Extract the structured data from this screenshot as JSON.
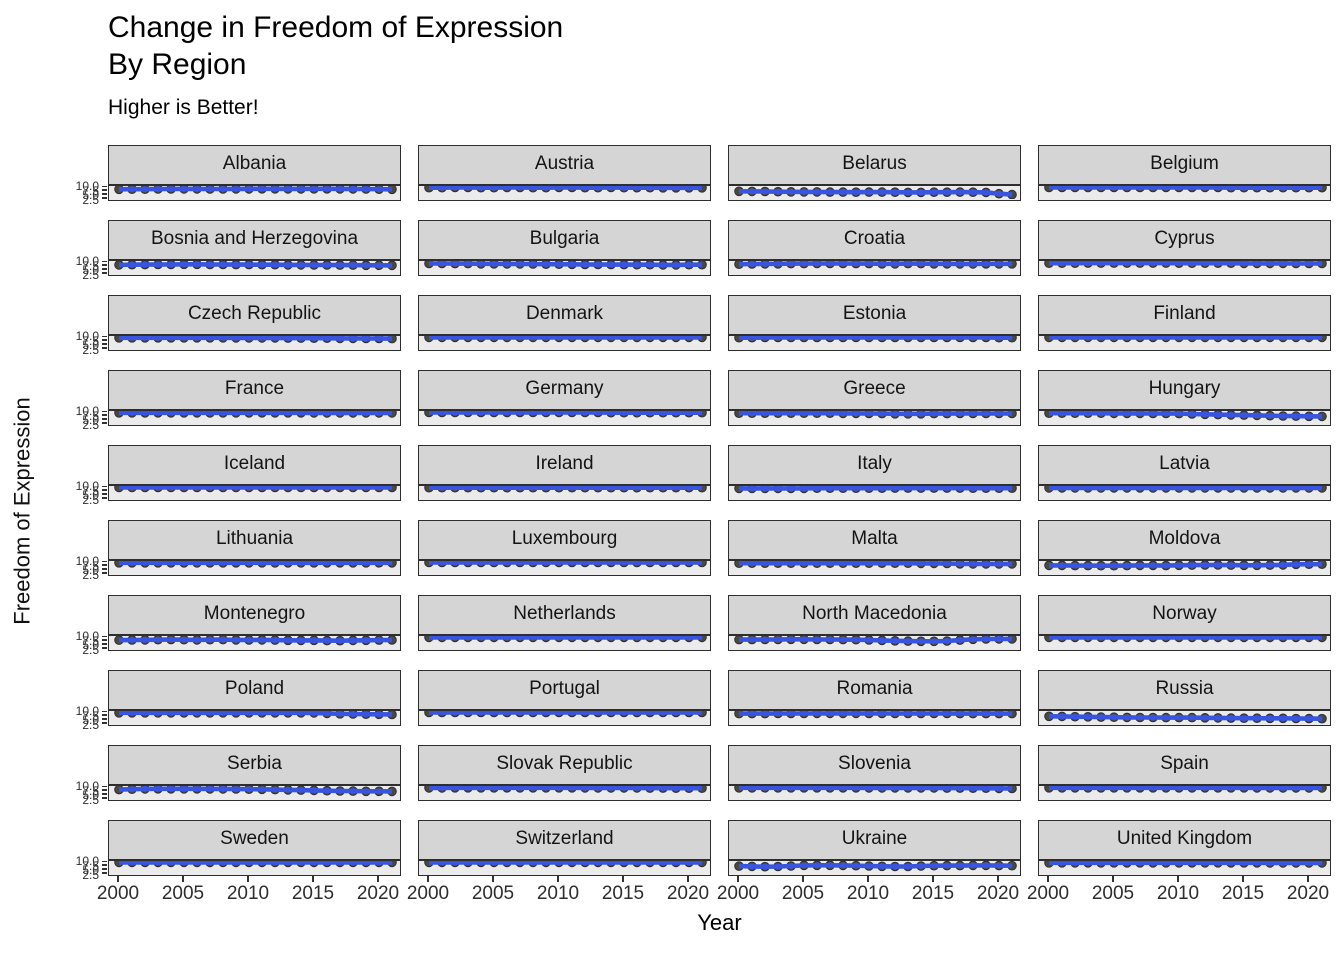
{
  "title": {
    "line1": "Change in Freedom of Expression",
    "line2": "By Region",
    "subtitle": "Higher is Better!"
  },
  "colors": {
    "accent_blue": "#3955e0",
    "point_outline": "#2f2f2f",
    "dark_point": "#484848",
    "strip_background": "#d5d5d5",
    "panel_background": "#ebebeb",
    "panel_border": "#2e2e2e"
  },
  "chart_data": {
    "type": "scatter",
    "title": "Change in Freedom of Expression By Region",
    "subtitle": "Higher is Better!",
    "xlabel": "Year",
    "ylabel": "Freedom of Expression",
    "x": [
      2000,
      2001,
      2002,
      2003,
      2004,
      2005,
      2006,
      2007,
      2008,
      2009,
      2010,
      2011,
      2012,
      2013,
      2014,
      2015,
      2016,
      2017,
      2018,
      2019,
      2020,
      2021
    ],
    "x_ticks": [
      "2000",
      "2005",
      "2010",
      "2015",
      "2020"
    ],
    "x_tick_values": [
      2000,
      2005,
      2010,
      2015,
      2020
    ],
    "y_ticks": [
      "10.0",
      "7.5",
      "5.0",
      "2.5"
    ],
    "y_tick_values": [
      10.0,
      7.5,
      5.0,
      2.5
    ],
    "ylim": [
      1.2,
      10.6
    ],
    "grid": false,
    "legend": "none",
    "layout": {
      "rows": 10,
      "cols": 4
    },
    "facets": [
      {
        "name": "Albania",
        "values": [
          8.2,
          8.3,
          8.3,
          8.4,
          8.4,
          8.5,
          8.5,
          8.4,
          8.4,
          8.5,
          8.5,
          8.6,
          8.6,
          8.5,
          8.5,
          8.6,
          8.6,
          8.5,
          8.5,
          8.4,
          8.3,
          8.2
        ]
      },
      {
        "name": "Austria",
        "values": [
          9.4,
          9.4,
          9.5,
          9.5,
          9.4,
          9.4,
          9.5,
          9.5,
          9.4,
          9.4,
          9.5,
          9.5,
          9.4,
          9.4,
          9.5,
          9.4,
          9.4,
          9.4,
          9.3,
          9.3,
          9.3,
          9.3
        ]
      },
      {
        "name": "Belarus",
        "values": [
          6.8,
          6.7,
          6.6,
          6.5,
          6.4,
          6.3,
          6.3,
          6.2,
          6.2,
          6.1,
          6.2,
          6.2,
          6.1,
          6.0,
          6.0,
          6.1,
          6.1,
          6.2,
          6.1,
          6.0,
          5.0,
          4.4
        ]
      },
      {
        "name": "Belgium",
        "values": [
          9.5,
          9.5,
          9.5,
          9.5,
          9.5,
          9.5,
          9.5,
          9.5,
          9.5,
          9.5,
          9.5,
          9.5,
          9.5,
          9.5,
          9.4,
          9.4,
          9.4,
          9.4,
          9.4,
          9.4,
          9.4,
          9.4
        ]
      },
      {
        "name": "Bosnia and Herzegovina",
        "values": [
          7.8,
          7.9,
          8.0,
          8.1,
          8.1,
          8.2,
          8.2,
          8.1,
          8.1,
          8.0,
          8.0,
          7.9,
          7.9,
          7.8,
          7.8,
          7.7,
          7.7,
          7.6,
          7.6,
          7.5,
          7.5,
          7.4
        ]
      },
      {
        "name": "Bulgaria",
        "values": [
          8.8,
          8.8,
          8.7,
          8.7,
          8.6,
          8.6,
          8.5,
          8.5,
          8.4,
          8.3,
          8.3,
          8.2,
          8.1,
          8.1,
          8.0,
          8.0,
          7.9,
          7.9,
          7.8,
          7.8,
          7.9,
          7.9
        ]
      },
      {
        "name": "Croatia",
        "values": [
          8.3,
          8.4,
          8.5,
          8.6,
          8.7,
          8.7,
          8.8,
          8.8,
          8.8,
          8.7,
          8.7,
          8.6,
          8.6,
          8.7,
          8.7,
          8.6,
          8.6,
          8.5,
          8.5,
          8.6,
          8.6,
          8.6
        ]
      },
      {
        "name": "Cyprus",
        "values": [
          9.0,
          9.0,
          9.0,
          9.1,
          9.1,
          9.1,
          9.1,
          9.1,
          9.1,
          9.1,
          9.0,
          9.0,
          9.0,
          9.0,
          9.0,
          8.9,
          8.9,
          8.9,
          8.9,
          8.8,
          8.8,
          8.8
        ]
      },
      {
        "name": "Czech Republic",
        "values": [
          9.3,
          9.3,
          9.3,
          9.3,
          9.3,
          9.3,
          9.3,
          9.3,
          9.3,
          9.2,
          9.2,
          9.2,
          9.2,
          9.1,
          9.1,
          9.0,
          9.0,
          8.9,
          8.9,
          8.8,
          8.8,
          8.7
        ]
      },
      {
        "name": "Denmark",
        "values": [
          9.6,
          9.6,
          9.6,
          9.6,
          9.6,
          9.6,
          9.6,
          9.6,
          9.6,
          9.6,
          9.6,
          9.6,
          9.6,
          9.6,
          9.6,
          9.6,
          9.6,
          9.6,
          9.6,
          9.6,
          9.6,
          9.6
        ]
      },
      {
        "name": "Estonia",
        "values": [
          9.4,
          9.4,
          9.5,
          9.5,
          9.5,
          9.5,
          9.5,
          9.5,
          9.5,
          9.5,
          9.5,
          9.5,
          9.5,
          9.5,
          9.5,
          9.5,
          9.5,
          9.5,
          9.5,
          9.5,
          9.4,
          9.4
        ]
      },
      {
        "name": "Finland",
        "values": [
          9.6,
          9.6,
          9.6,
          9.6,
          9.6,
          9.6,
          9.6,
          9.6,
          9.6,
          9.6,
          9.6,
          9.6,
          9.6,
          9.6,
          9.6,
          9.6,
          9.6,
          9.6,
          9.6,
          9.6,
          9.6,
          9.6
        ]
      },
      {
        "name": "France",
        "values": [
          9.3,
          9.3,
          9.3,
          9.3,
          9.3,
          9.3,
          9.3,
          9.3,
          9.3,
          9.3,
          9.3,
          9.3,
          9.3,
          9.3,
          9.3,
          9.2,
          9.2,
          9.2,
          9.2,
          9.2,
          9.2,
          9.2
        ]
      },
      {
        "name": "Germany",
        "values": [
          9.5,
          9.5,
          9.5,
          9.5,
          9.5,
          9.5,
          9.5,
          9.5,
          9.5,
          9.5,
          9.5,
          9.5,
          9.5,
          9.5,
          9.4,
          9.4,
          9.4,
          9.4,
          9.4,
          9.4,
          9.4,
          9.4
        ]
      },
      {
        "name": "Greece",
        "values": [
          9.0,
          9.0,
          9.0,
          9.0,
          9.0,
          9.0,
          9.0,
          9.0,
          8.9,
          8.9,
          8.8,
          8.7,
          8.6,
          8.6,
          8.6,
          8.7,
          8.7,
          8.8,
          8.8,
          8.8,
          8.8,
          8.8
        ]
      },
      {
        "name": "Hungary",
        "values": [
          9.0,
          9.0,
          9.0,
          9.0,
          9.0,
          8.9,
          8.9,
          8.9,
          8.8,
          8.8,
          8.7,
          8.4,
          8.2,
          8.0,
          7.8,
          7.6,
          7.4,
          7.2,
          7.0,
          6.9,
          6.8,
          6.7
        ]
      },
      {
        "name": "Iceland",
        "values": [
          9.5,
          9.5,
          9.5,
          9.5,
          9.5,
          9.5,
          9.5,
          9.5,
          9.5,
          9.5,
          9.5,
          9.5,
          9.5,
          9.5,
          9.5,
          9.5,
          9.5,
          9.5,
          9.5,
          9.5,
          9.5,
          9.5
        ]
      },
      {
        "name": "Ireland",
        "values": [
          9.4,
          9.4,
          9.4,
          9.4,
          9.4,
          9.4,
          9.4,
          9.4,
          9.4,
          9.4,
          9.4,
          9.4,
          9.4,
          9.4,
          9.4,
          9.4,
          9.4,
          9.4,
          9.4,
          9.4,
          9.4,
          9.4
        ]
      },
      {
        "name": "Italy",
        "values": [
          8.9,
          8.9,
          8.9,
          8.9,
          8.9,
          8.9,
          9.0,
          9.0,
          9.0,
          9.0,
          9.0,
          9.0,
          9.1,
          9.1,
          9.1,
          9.1,
          9.1,
          9.1,
          9.0,
          9.0,
          9.0,
          9.0
        ]
      },
      {
        "name": "Latvia",
        "values": [
          9.2,
          9.2,
          9.2,
          9.2,
          9.2,
          9.2,
          9.2,
          9.2,
          9.2,
          9.2,
          9.2,
          9.2,
          9.2,
          9.2,
          9.2,
          9.2,
          9.2,
          9.2,
          9.2,
          9.2,
          9.2,
          9.2
        ]
      },
      {
        "name": "Lithuania",
        "values": [
          9.3,
          9.3,
          9.3,
          9.3,
          9.3,
          9.3,
          9.3,
          9.3,
          9.3,
          9.3,
          9.3,
          9.3,
          9.3,
          9.3,
          9.3,
          9.3,
          9.3,
          9.3,
          9.3,
          9.3,
          9.3,
          9.3
        ]
      },
      {
        "name": "Luxembourg",
        "values": [
          9.5,
          9.5,
          9.5,
          9.5,
          9.5,
          9.5,
          9.5,
          9.5,
          9.5,
          9.5,
          9.5,
          9.5,
          9.5,
          9.5,
          9.5,
          9.5,
          9.5,
          9.5,
          9.5,
          9.5,
          9.5,
          9.5
        ]
      },
      {
        "name": "Malta",
        "values": [
          9.0,
          9.0,
          9.0,
          9.0,
          9.0,
          9.0,
          9.0,
          9.0,
          9.0,
          9.0,
          9.0,
          9.0,
          9.0,
          9.0,
          8.9,
          8.9,
          8.8,
          8.6,
          8.5,
          8.5,
          8.5,
          8.5
        ]
      },
      {
        "name": "Moldova",
        "values": [
          7.4,
          7.4,
          7.3,
          7.3,
          7.2,
          7.2,
          7.3,
          7.4,
          7.4,
          7.3,
          7.5,
          7.6,
          7.7,
          7.7,
          7.6,
          7.5,
          7.5,
          7.6,
          7.8,
          8.2,
          8.3,
          8.3
        ]
      },
      {
        "name": "Montenegro",
        "values": [
          7.6,
          7.7,
          7.8,
          7.9,
          8.0,
          7.9,
          7.8,
          7.9,
          8.0,
          7.8,
          7.7,
          7.8,
          7.6,
          7.5,
          7.4,
          7.5,
          7.3,
          7.2,
          7.4,
          7.5,
          7.6,
          7.7
        ]
      },
      {
        "name": "Netherlands",
        "values": [
          9.6,
          9.6,
          9.6,
          9.6,
          9.6,
          9.6,
          9.6,
          9.6,
          9.6,
          9.6,
          9.6,
          9.6,
          9.6,
          9.6,
          9.6,
          9.6,
          9.6,
          9.6,
          9.6,
          9.6,
          9.6,
          9.6
        ]
      },
      {
        "name": "North Macedonia",
        "values": [
          8.0,
          8.0,
          8.1,
          8.1,
          8.2,
          8.2,
          8.1,
          8.1,
          8.0,
          7.9,
          7.7,
          7.4,
          7.1,
          6.9,
          6.8,
          6.8,
          7.0,
          7.6,
          8.2,
          8.4,
          8.5,
          8.5
        ]
      },
      {
        "name": "Norway",
        "values": [
          9.6,
          9.6,
          9.6,
          9.6,
          9.6,
          9.6,
          9.6,
          9.6,
          9.6,
          9.6,
          9.6,
          9.6,
          9.6,
          9.6,
          9.6,
          9.6,
          9.6,
          9.6,
          9.6,
          9.6,
          9.6,
          9.6
        ]
      },
      {
        "name": "Poland",
        "values": [
          9.3,
          9.3,
          9.3,
          9.3,
          9.3,
          9.3,
          9.3,
          9.3,
          9.3,
          9.3,
          9.3,
          9.3,
          9.3,
          9.3,
          9.3,
          9.2,
          8.9,
          8.6,
          8.4,
          8.3,
          8.2,
          8.1
        ]
      },
      {
        "name": "Portugal",
        "values": [
          9.5,
          9.5,
          9.5,
          9.5,
          9.5,
          9.5,
          9.5,
          9.5,
          9.5,
          9.5,
          9.5,
          9.5,
          9.5,
          9.5,
          9.5,
          9.5,
          9.5,
          9.5,
          9.5,
          9.5,
          9.5,
          9.5
        ]
      },
      {
        "name": "Romania",
        "values": [
          8.7,
          8.7,
          8.7,
          8.8,
          8.8,
          8.8,
          8.9,
          8.9,
          8.9,
          8.9,
          8.8,
          8.8,
          8.8,
          8.8,
          8.8,
          8.8,
          8.8,
          8.7,
          8.7,
          8.7,
          8.7,
          8.7
        ]
      },
      {
        "name": "Russia",
        "values": [
          6.8,
          6.7,
          6.5,
          6.4,
          6.2,
          6.1,
          6.0,
          5.9,
          5.9,
          5.8,
          5.8,
          5.8,
          5.7,
          5.6,
          5.5,
          5.4,
          5.4,
          5.3,
          5.3,
          5.2,
          5.1,
          5.0
        ]
      },
      {
        "name": "Serbia",
        "values": [
          8.0,
          8.3,
          8.5,
          8.6,
          8.6,
          8.6,
          8.6,
          8.5,
          8.5,
          8.4,
          8.3,
          8.2,
          8.0,
          7.8,
          7.6,
          7.4,
          7.2,
          7.0,
          6.9,
          6.8,
          6.8,
          6.7
        ]
      },
      {
        "name": "Slovak Republic",
        "values": [
          9.2,
          9.2,
          9.3,
          9.3,
          9.3,
          9.3,
          9.3,
          9.3,
          9.3,
          9.3,
          9.3,
          9.3,
          9.2,
          9.2,
          9.2,
          9.2,
          9.2,
          9.1,
          9.1,
          9.0,
          9.0,
          9.0
        ]
      },
      {
        "name": "Slovenia",
        "values": [
          9.3,
          9.3,
          9.3,
          9.3,
          9.3,
          9.3,
          9.3,
          9.3,
          9.3,
          9.3,
          9.2,
          9.2,
          9.2,
          9.2,
          9.2,
          9.2,
          9.1,
          9.1,
          9.0,
          9.0,
          8.9,
          8.8
        ]
      },
      {
        "name": "Spain",
        "values": [
          9.3,
          9.3,
          9.3,
          9.3,
          9.3,
          9.3,
          9.3,
          9.3,
          9.3,
          9.3,
          9.3,
          9.3,
          9.3,
          9.3,
          9.3,
          9.3,
          9.2,
          9.2,
          9.2,
          9.2,
          9.2,
          9.2
        ]
      },
      {
        "name": "Sweden",
        "values": [
          9.6,
          9.6,
          9.6,
          9.6,
          9.6,
          9.6,
          9.6,
          9.6,
          9.6,
          9.6,
          9.6,
          9.6,
          9.6,
          9.6,
          9.6,
          9.6,
          9.6,
          9.6,
          9.6,
          9.6,
          9.6,
          9.6
        ]
      },
      {
        "name": "Switzerland",
        "values": [
          9.6,
          9.6,
          9.6,
          9.6,
          9.6,
          9.6,
          9.6,
          9.6,
          9.6,
          9.6,
          9.6,
          9.6,
          9.6,
          9.6,
          9.6,
          9.6,
          9.6,
          9.6,
          9.6,
          9.6,
          9.6,
          9.6
        ]
      },
      {
        "name": "Ukraine",
        "values": [
          6.9,
          6.7,
          6.5,
          6.6,
          7.0,
          7.4,
          7.5,
          7.5,
          7.4,
          7.2,
          7.0,
          6.8,
          6.6,
          6.6,
          7.0,
          7.2,
          7.3,
          7.3,
          7.4,
          7.4,
          7.3,
          7.2
        ]
      },
      {
        "name": "United Kingdom",
        "values": [
          9.3,
          9.3,
          9.3,
          9.3,
          9.3,
          9.3,
          9.3,
          9.3,
          9.3,
          9.3,
          9.3,
          9.3,
          9.3,
          9.3,
          9.3,
          9.3,
          9.3,
          9.2,
          9.2,
          9.2,
          9.2,
          9.2
        ]
      }
    ]
  }
}
